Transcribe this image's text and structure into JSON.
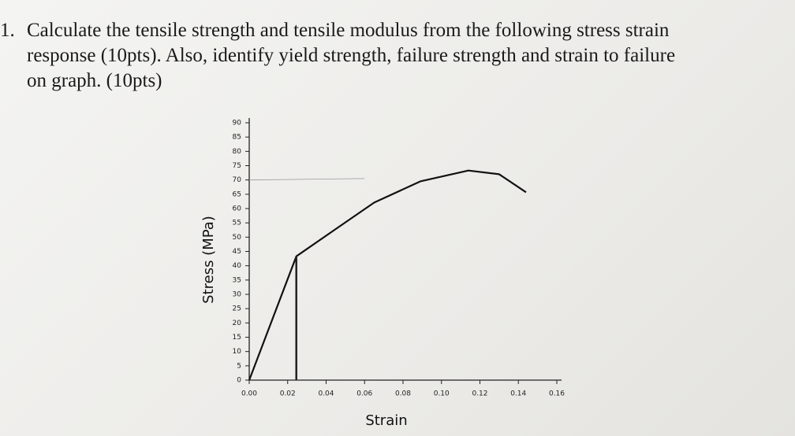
{
  "question": {
    "number": "1.",
    "lines": [
      "Calculate the tensile strength and tensile modulus from the following stress strain",
      "response (10pts). Also, identify yield strength, failure strength and strain to failure",
      "on graph. (10pts)"
    ]
  },
  "chart_data": {
    "type": "line",
    "xlabel": "Strain",
    "ylabel": "Stress (MPa)",
    "x": [
      0,
      0.0245,
      0.0445,
      0.065,
      0.089,
      0.114,
      0.13,
      0.144
    ],
    "values": [
      0,
      43.3,
      52.6,
      62.1,
      69.5,
      73.3,
      72,
      65.7
    ],
    "color": "#111111",
    "xlim": [
      0,
      0.16
    ],
    "ylim": [
      0,
      90
    ],
    "xticks": [
      {
        "value": 0,
        "label": "0.00"
      },
      {
        "value": 0.02,
        "label": "0.02"
      },
      {
        "value": 0.04,
        "label": "0.04"
      },
      {
        "value": 0.06,
        "label": "0.06"
      },
      {
        "value": 0.08,
        "label": "0.08"
      },
      {
        "value": 0.1,
        "label": "0.10"
      },
      {
        "value": 0.12,
        "label": "0.12"
      },
      {
        "value": 0.14,
        "label": "0.14"
      },
      {
        "value": 0.16,
        "label": "0.16"
      }
    ],
    "yticks": [
      0,
      5,
      10,
      15,
      20,
      25,
      30,
      35,
      40,
      45,
      50,
      55,
      60,
      65,
      70,
      75,
      80,
      85,
      90
    ]
  }
}
